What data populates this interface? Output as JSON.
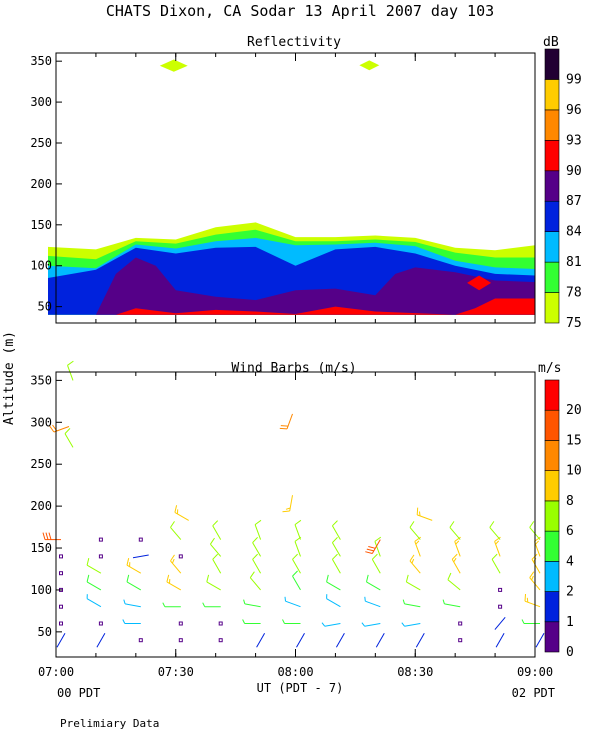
{
  "figure": {
    "title": "CHATS Dixon, CA  Sodar  13 April 2007  day 103",
    "y_axis_label": "Altitude (m)",
    "x_axis_label": "UT  (PDT - 7)",
    "pdt_start": "00 PDT",
    "pdt_end": "02 PDT",
    "footer": "Prelimiary Data"
  },
  "chart_data": [
    {
      "type": "heatmap",
      "title": "Reflectivity",
      "x_ticks": [
        "07:00",
        "07:30",
        "08:00",
        "08:30",
        "09:00"
      ],
      "xlim": [
        "07:00",
        "09:00"
      ],
      "y_ticks": [
        50,
        100,
        150,
        200,
        250,
        300,
        350
      ],
      "ylim": [
        30,
        360
      ],
      "colorbar": {
        "unit": "dB",
        "levels": [
          75,
          78,
          81,
          84,
          87,
          90,
          93,
          96,
          99
        ],
        "colors": [
          "#ccff00",
          "#33ff33",
          "#00bbff",
          "#0022dd",
          "#550088",
          "#ff0000",
          "#ff8800",
          "#ffcc00",
          "#220033"
        ]
      },
      "layers": [
        {
          "level": 75,
          "x": [
            "06:58",
            "07:10",
            "07:20",
            "07:30",
            "07:40",
            "07:50",
            "08:00",
            "08:10",
            "08:20",
            "08:30",
            "08:40",
            "08:50",
            "09:00"
          ],
          "top": [
            123,
            120,
            134,
            132,
            147,
            153,
            135,
            135,
            137,
            134,
            122,
            119,
            125
          ]
        },
        {
          "level": 78,
          "x": [
            "06:58",
            "07:10",
            "07:20",
            "07:30",
            "07:40",
            "07:50",
            "08:00",
            "08:10",
            "08:20",
            "08:30",
            "08:40",
            "08:50",
            "09:00"
          ],
          "top": [
            112,
            108,
            130,
            127,
            138,
            144,
            130,
            130,
            132,
            129,
            116,
            110,
            110
          ]
        },
        {
          "level": 81,
          "x": [
            "06:58",
            "07:10",
            "07:20",
            "07:30",
            "07:40",
            "07:50",
            "08:00",
            "08:10",
            "08:20",
            "08:30",
            "08:40",
            "08:50",
            "09:00"
          ],
          "top": [
            100,
            97,
            126,
            121,
            130,
            134,
            125,
            126,
            128,
            124,
            106,
            98,
            96
          ]
        },
        {
          "level": 84,
          "x": [
            "06:58",
            "07:10",
            "07:20",
            "07:30",
            "07:40",
            "07:50",
            "08:00",
            "08:10",
            "08:20",
            "08:30",
            "08:40",
            "08:50",
            "09:00"
          ],
          "top": [
            85,
            95,
            122,
            115,
            122,
            123,
            100,
            120,
            123,
            115,
            100,
            90,
            88
          ]
        },
        {
          "level": 87,
          "x": [
            "07:10",
            "07:15",
            "07:20",
            "07:25",
            "07:30",
            "07:40",
            "07:50",
            "08:00",
            "08:10",
            "08:20",
            "08:25",
            "08:30",
            "08:40",
            "08:50",
            "09:00"
          ],
          "top": [
            40,
            90,
            110,
            100,
            70,
            62,
            58,
            70,
            72,
            64,
            90,
            98,
            92,
            82,
            80
          ]
        },
        {
          "level": 90,
          "x": [
            "07:15",
            "07:20",
            "07:30",
            "07:40",
            "07:50",
            "08:00",
            "08:10",
            "08:20",
            "08:40",
            "08:45",
            "08:50",
            "09:00"
          ],
          "top": [
            40,
            48,
            42,
            46,
            44,
            41,
            50,
            44,
            40,
            48,
            60,
            60
          ]
        }
      ],
      "patches": [
        {
          "level": 90,
          "x_range": [
            "08:43",
            "08:49"
          ],
          "y_range": [
            70,
            88
          ]
        },
        {
          "level": 75,
          "x_range": [
            "07:26",
            "07:33"
          ],
          "y_range": [
            337,
            352
          ]
        },
        {
          "level": 75,
          "x_range": [
            "08:16",
            "08:21"
          ],
          "y_range": [
            339,
            351
          ]
        }
      ]
    },
    {
      "type": "scatter",
      "title": "Wind Barbs (m/s)",
      "x_ticks": [
        "07:00",
        "07:30",
        "08:00",
        "08:30",
        "09:00"
      ],
      "xlim": [
        "07:00",
        "09:00"
      ],
      "y_ticks": [
        50,
        100,
        150,
        200,
        250,
        300,
        350
      ],
      "ylim": [
        20,
        360
      ],
      "colorbar": {
        "unit": "m/s",
        "levels": [
          0,
          1,
          2,
          4,
          6,
          8,
          10,
          15,
          20
        ],
        "colors": [
          "#550088",
          "#0022dd",
          "#00bbff",
          "#33ff33",
          "#99ff00",
          "#ffcc00",
          "#ff8800",
          "#ff5500",
          "#ff0000"
        ]
      },
      "wind_speed_unit": "m/s",
      "columns": [
        "07:00",
        "07:10",
        "07:20",
        "07:30",
        "07:40",
        "07:50",
        "08:00",
        "08:10",
        "08:20",
        "08:30",
        "08:40",
        "08:50",
        "09:00"
      ],
      "altitudes": [
        40,
        60,
        80,
        100,
        120,
        140,
        160
      ],
      "speed_grid": [
        [
          1.5,
          1.5,
          0,
          0,
          0,
          1.5,
          1.5,
          1.5,
          1.5,
          1.5,
          0,
          1.5,
          1.5
        ],
        [
          0,
          0,
          3,
          0,
          0,
          4,
          4,
          3,
          3,
          3,
          0,
          1.5,
          4
        ],
        [
          0,
          3,
          3,
          4,
          4,
          4,
          3,
          3,
          3,
          4,
          4,
          0,
          8
        ],
        [
          0,
          5,
          5,
          8,
          6,
          6,
          5,
          5,
          5,
          7,
          7,
          0,
          8
        ],
        [
          0,
          6,
          8,
          9,
          6,
          6,
          6,
          7,
          7,
          8,
          9,
          7,
          8
        ],
        [
          0,
          0,
          1.5,
          0,
          6,
          6,
          6,
          6,
          7,
          9,
          9,
          8,
          8
        ],
        [
          16,
          0,
          0,
          7,
          6,
          6,
          6,
          6,
          17,
          7,
          7,
          7,
          7
        ]
      ],
      "dir_grid": [
        [
          210,
          210,
          0,
          0,
          0,
          210,
          210,
          210,
          210,
          210,
          0,
          210,
          210
        ],
        [
          0,
          0,
          270,
          0,
          0,
          270,
          270,
          260,
          260,
          260,
          0,
          220,
          270
        ],
        [
          0,
          300,
          280,
          270,
          270,
          280,
          290,
          300,
          290,
          280,
          280,
          0,
          290
        ],
        [
          0,
          300,
          300,
          300,
          300,
          320,
          330,
          300,
          300,
          300,
          310,
          0,
          320
        ],
        [
          0,
          300,
          300,
          320,
          330,
          330,
          330,
          330,
          330,
          320,
          330,
          330,
          330
        ],
        [
          0,
          0,
          260,
          0,
          320,
          330,
          340,
          330,
          340,
          340,
          340,
          340,
          340
        ],
        [
          270,
          0,
          0,
          320,
          330,
          340,
          340,
          330,
          210,
          320,
          320,
          320,
          320
        ]
      ],
      "upper_barbs": [
        {
          "x": "07:03",
          "alt": 350,
          "speed": 7,
          "dir": 340
        },
        {
          "x": "07:02",
          "alt": 295,
          "speed": 10,
          "dir": 250
        },
        {
          "x": "07:03",
          "alt": 270,
          "speed": 6,
          "dir": 330
        },
        {
          "x": "07:58",
          "alt": 310,
          "speed": 10,
          "dir": 200
        },
        {
          "x": "07:58",
          "alt": 213,
          "speed": 8,
          "dir": 190
        },
        {
          "x": "07:32",
          "alt": 183,
          "speed": 8,
          "dir": 300
        },
        {
          "x": "08:33",
          "alt": 183,
          "speed": 8,
          "dir": 290
        }
      ]
    }
  ]
}
